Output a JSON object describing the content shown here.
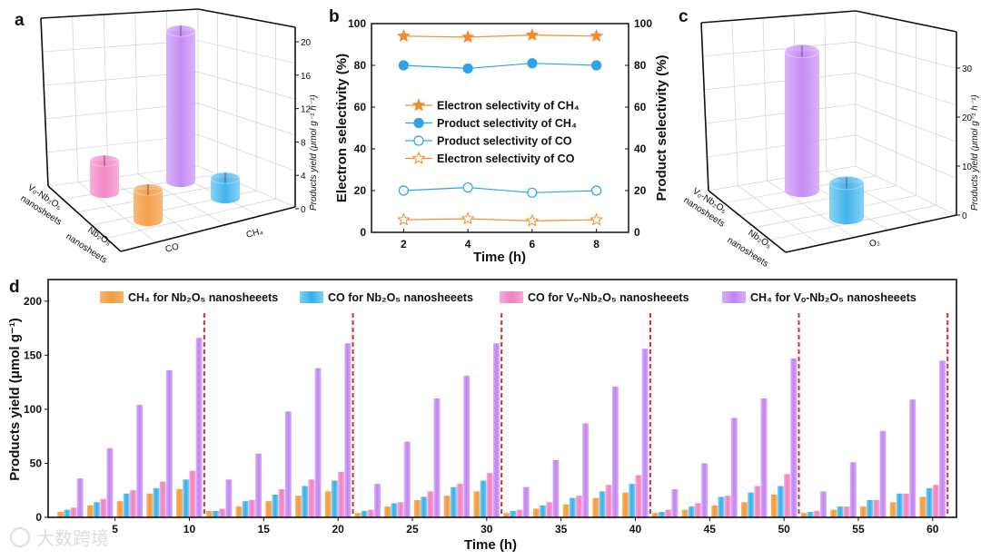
{
  "panel_labels": {
    "a": "a",
    "b": "b",
    "c": "c",
    "d": "d"
  },
  "watermark": "大数跨境",
  "colors": {
    "orange": "#f5a04a",
    "blue": "#45b8ee",
    "pink": "#f48cc8",
    "purple": "#c690f6",
    "red_dash": "#e3262a",
    "line_orange": "#f28c2e",
    "line_blue": "#2ea3e6"
  },
  "chart_data": [
    {
      "id": "a",
      "type": "bar3d",
      "zlabel": "Products yield (μmol g⁻¹ h⁻¹)",
      "zticks": [
        0,
        4,
        8,
        12,
        16,
        20
      ],
      "x_categories": [
        "CO",
        "CH₄"
      ],
      "y_categories": [
        {
          "line1": "Vₒ-Nb₂O₅",
          "line2": "nanosheets"
        },
        {
          "line1": "Nb₂O₅",
          "line2": "nanosheets"
        }
      ],
      "bars": [
        {
          "sample": "Vₒ-Nb₂O₅ nanosheets",
          "product": "CO",
          "value": 4.3,
          "color": "#f48cc8"
        },
        {
          "sample": "Vₒ-Nb₂O₅ nanosheets",
          "product": "CH₄",
          "value": 20.5,
          "color": "#c690f6"
        },
        {
          "sample": "Nb₂O₅ nanosheets",
          "product": "CO",
          "value": 4.2,
          "color": "#f5a04a"
        },
        {
          "sample": "Nb₂O₅ nanosheets",
          "product": "CH₄",
          "value": 2.7,
          "color": "#45b8ee"
        }
      ]
    },
    {
      "id": "b",
      "type": "line",
      "xlabel": "Time (h)",
      "ylabel": "Electron selectivity (%)",
      "ylabel_right": "Product selectivity (%)",
      "x": [
        2,
        4,
        6,
        8
      ],
      "xlim": [
        1,
        9
      ],
      "ylim": [
        0,
        100
      ],
      "xticks": [
        2,
        4,
        6,
        8
      ],
      "yticks": [
        0,
        20,
        40,
        60,
        80,
        100
      ],
      "legend_position": "center-left",
      "series": [
        {
          "name": "Electron selectivity of CH₄",
          "values": [
            94,
            93.5,
            94.5,
            94
          ],
          "marker": "star-filled",
          "color": "#f28c2e"
        },
        {
          "name": "Product selectivity of CH₄",
          "values": [
            80,
            78.5,
            81,
            80
          ],
          "marker": "circle-filled",
          "color": "#2ea3e6"
        },
        {
          "name": "Product selectivity of CO",
          "values": [
            20,
            21.5,
            19,
            20
          ],
          "marker": "circle-open",
          "color": "#2ea3e6"
        },
        {
          "name": "Electron selectivity of CO",
          "values": [
            6,
            6.5,
            5.5,
            6
          ],
          "marker": "star-open",
          "color": "#f28c2e"
        }
      ]
    },
    {
      "id": "c",
      "type": "bar3d",
      "zlabel": "Products yield (μmol g⁻¹ h⁻¹)",
      "zticks": [
        0,
        10,
        20,
        30
      ],
      "x_categories": [
        "O₂"
      ],
      "y_categories": [
        {
          "line1": "Vₒ-Nb₂O₅",
          "line2": "nanosheets"
        },
        {
          "line1": "Nb₂O₅",
          "line2": "nanosheets"
        }
      ],
      "bars": [
        {
          "sample": "Vₒ-Nb₂O₅ nanosheets",
          "product": "O₂",
          "value": 32,
          "color": "#c690f6"
        },
        {
          "sample": "Nb₂O₅ nanosheets",
          "product": "O₂",
          "value": 8,
          "color": "#45b8ee"
        }
      ]
    },
    {
      "id": "d",
      "type": "bar",
      "xlabel": "Time (h)",
      "ylabel": "Products yield (μmol g⁻¹)",
      "xlim": [
        0.5,
        61.6
      ],
      "ylim": [
        0,
        220
      ],
      "xticks": [
        5,
        10,
        15,
        20,
        25,
        30,
        35,
        40,
        45,
        50,
        55,
        60
      ],
      "yticks": [
        0,
        50,
        100,
        150,
        200
      ],
      "cycle_separators": [
        11,
        21,
        31,
        41,
        51,
        61
      ],
      "legend_position": "top",
      "x": [
        2,
        4,
        6,
        8,
        10,
        12,
        14,
        16,
        18,
        20,
        22,
        24,
        26,
        28,
        30,
        32,
        34,
        36,
        38,
        40,
        42,
        44,
        46,
        48,
        50,
        52,
        54,
        56,
        58,
        60
      ],
      "series": [
        {
          "name": "CH₄ for Nb₂O₅ nanosheeets",
          "color": "#f5a04a",
          "values": [
            5,
            11,
            15,
            22,
            26,
            6,
            10,
            15,
            20,
            24,
            4,
            10,
            16,
            20,
            24,
            4,
            8,
            12,
            18,
            23,
            4,
            7,
            11,
            14,
            21,
            4,
            7,
            10,
            14,
            19
          ]
        },
        {
          "name": "CO for Nb₂O₅ nanosheeets",
          "color": "#45b8ee",
          "values": [
            7,
            14,
            22,
            27,
            35,
            6,
            15,
            21,
            29,
            34,
            6,
            13,
            19,
            28,
            34,
            6,
            11,
            18,
            24,
            31,
            5,
            10,
            19,
            23,
            29,
            5,
            10,
            16,
            22,
            27
          ]
        },
        {
          "name": "CO for Vₒ-Nb₂O₅ nanosheeets",
          "color": "#f48cc8",
          "values": [
            9,
            17,
            25,
            33,
            43,
            8,
            16,
            26,
            35,
            42,
            7,
            14,
            24,
            31,
            41,
            7,
            14,
            20,
            30,
            39,
            7,
            13,
            20,
            29,
            40,
            6,
            10,
            16,
            22,
            30
          ]
        },
        {
          "name": "CH₄ for Vₒ-Nb₂O₅ nanosheeets",
          "color": "#c690f6",
          "values": [
            36,
            64,
            104,
            136,
            166,
            35,
            59,
            98,
            138,
            161,
            31,
            70,
            110,
            131,
            161,
            28,
            53,
            87,
            121,
            156,
            26,
            50,
            92,
            110,
            147,
            24,
            51,
            80,
            109,
            145
          ]
        }
      ]
    }
  ]
}
